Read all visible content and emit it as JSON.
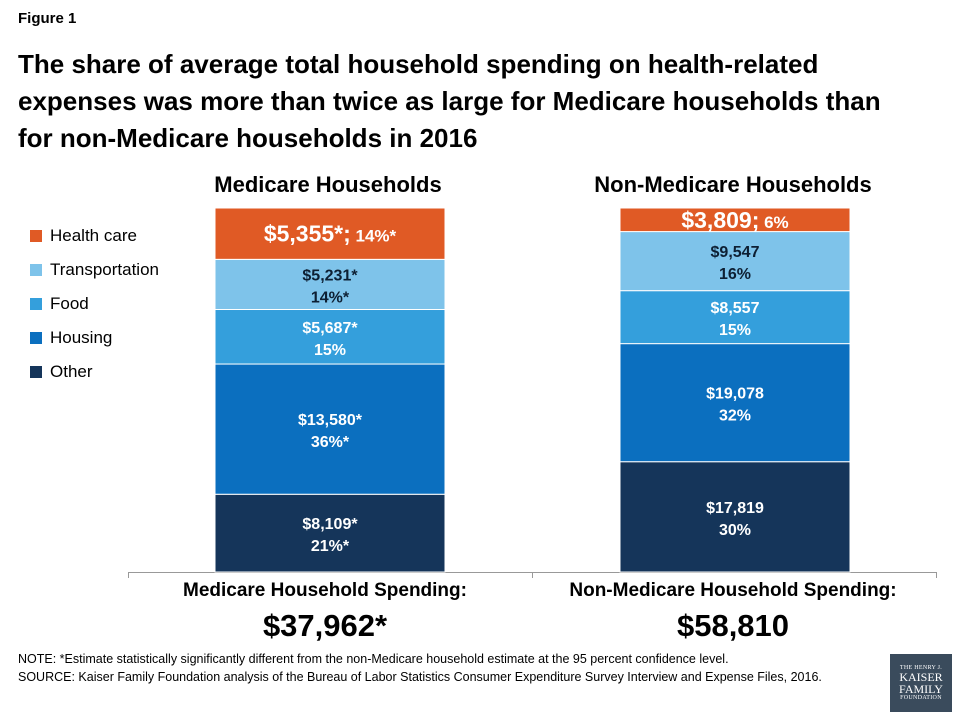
{
  "figure_label": "Figure 1",
  "title": "The share of average total household spending on health-related expenses was more than twice as large for Medicare households than for non-Medicare households in 2016",
  "legend": [
    {
      "label": "Health care",
      "color": "#e05a25"
    },
    {
      "label": "Transportation",
      "color": "#7ec3ea"
    },
    {
      "label": "Food",
      "color": "#349fdc"
    },
    {
      "label": "Housing",
      "color": "#0b6fbf"
    },
    {
      "label": "Other",
      "color": "#15355a"
    }
  ],
  "chart_data": {
    "type": "bar",
    "stacked": true,
    "categories": [
      "Medicare Households",
      "Non-Medicare Households"
    ],
    "series": [
      {
        "name": "Other",
        "color": "#15355a",
        "values": [
          8109,
          17819
        ],
        "labels": [
          "$8,109*",
          "$17,819"
        ],
        "shares": [
          "21%*",
          "30%"
        ]
      },
      {
        "name": "Housing",
        "color": "#0b6fbf",
        "values": [
          13580,
          19078
        ],
        "labels": [
          "$13,580*",
          "$19,078"
        ],
        "shares": [
          "36%*",
          "32%"
        ]
      },
      {
        "name": "Food",
        "color": "#349fdc",
        "values": [
          5687,
          8557
        ],
        "labels": [
          "$5,687*",
          "$8,557"
        ],
        "shares": [
          "15%",
          "15%"
        ]
      },
      {
        "name": "Transportation",
        "color": "#7ec3ea",
        "values": [
          5231,
          9547
        ],
        "labels": [
          "$5,231*",
          "$9,547"
        ],
        "shares": [
          "14%*",
          "16%"
        ]
      },
      {
        "name": "Health care",
        "color": "#e05a25",
        "values": [
          5355,
          3809
        ],
        "labels": [
          "$5,355*",
          "$3,809"
        ],
        "shares": [
          "14%*",
          "6%"
        ]
      }
    ],
    "totals": [
      {
        "label": "Medicare Household Spending:",
        "value": "$37,962*"
      },
      {
        "label": "Non-Medicare Household Spending:",
        "value": "$58,810"
      }
    ]
  },
  "notes": {
    "note": "NOTE: *Estimate statistically significantly different from the non-Medicare household estimate at the 95 percent confidence level.",
    "source": "SOURCE: Kaiser Family Foundation analysis of the Bureau of Labor Statistics Consumer Expenditure Survey Interview and Expense Files, 2016."
  },
  "logo": {
    "line1": "THE HENRY J.",
    "line2": "KAISER",
    "line3": "FAMILY",
    "line4": "FOUNDATION"
  }
}
